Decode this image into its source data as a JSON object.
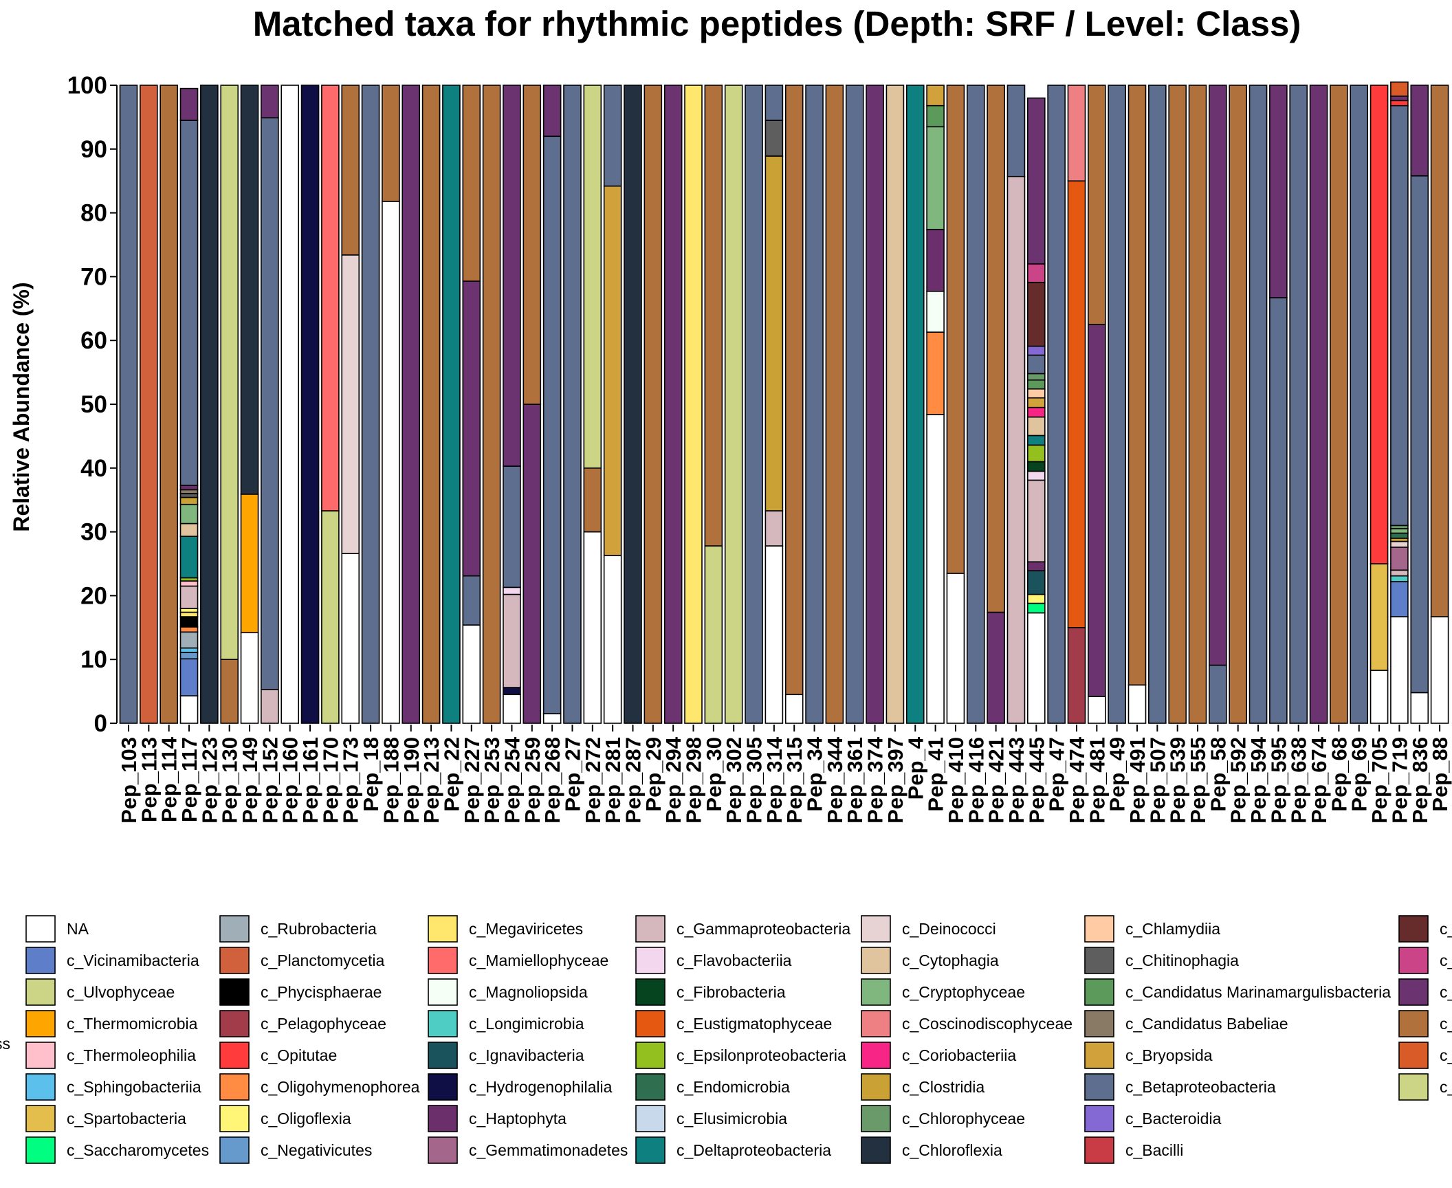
{
  "chart_data": {
    "type": "bar",
    "stacked": true,
    "title": "Matched taxa for rhythmic peptides (Depth: SRF / Level: Class)",
    "xlabel": "",
    "ylabel": "Relative Abundance (%)",
    "ylim": [
      0,
      100
    ],
    "yticks": [
      0,
      10,
      20,
      30,
      40,
      50,
      60,
      70,
      80,
      90,
      100
    ],
    "grid": false,
    "legend_title": "ss",
    "legend_position": "bottom",
    "categories": [
      "Pep_103",
      "Pep_113",
      "Pep_114",
      "Pep_117",
      "Pep_123",
      "Pep_130",
      "Pep_149",
      "Pep_152",
      "Pep_160",
      "Pep_161",
      "Pep_170",
      "Pep_173",
      "Pep_18",
      "Pep_188",
      "Pep_190",
      "Pep_213",
      "Pep_22",
      "Pep_227",
      "Pep_253",
      "Pep_254",
      "Pep_259",
      "Pep_268",
      "Pep_27",
      "Pep_272",
      "Pep_281",
      "Pep_287",
      "Pep_29",
      "Pep_294",
      "Pep_298",
      "Pep_30",
      "Pep_302",
      "Pep_305",
      "Pep_314",
      "Pep_315",
      "Pep_34",
      "Pep_344",
      "Pep_361",
      "Pep_374",
      "Pep_397",
      "Pep_4",
      "Pep_41",
      "Pep_410",
      "Pep_416",
      "Pep_421",
      "Pep_443",
      "Pep_445",
      "Pep_47",
      "Pep_474",
      "Pep_481",
      "Pep_49",
      "Pep_491",
      "Pep_507",
      "Pep_539",
      "Pep_555",
      "Pep_58",
      "Pep_592",
      "Pep_594",
      "Pep_595",
      "Pep_638",
      "Pep_674",
      "Pep_68",
      "Pep_69",
      "Pep_705",
      "Pep_719",
      "Pep_836",
      "Pep_88"
    ],
    "legend": [
      {
        "name": "NA",
        "color": "#FFFFFF"
      },
      {
        "name": "c_Vicinamibacteria",
        "color": "#5E7EC9"
      },
      {
        "name": "c_Ulvophyceae",
        "color": "#CBD585"
      },
      {
        "name": "c_Thermomicrobia",
        "color": "#FFA500"
      },
      {
        "name": "c_Thermoleophilia",
        "color": "#FFC0CB"
      },
      {
        "name": "c_Sphingobacteriia",
        "color": "#5BC0EB"
      },
      {
        "name": "c_Spartobacteria",
        "color": "#E3BE4C"
      },
      {
        "name": "c_Saccharomycetes",
        "color": "#00FF80"
      },
      {
        "name": "c_Rubrobacteria",
        "color": "#A0AEB8"
      },
      {
        "name": "c_Planctomycetia",
        "color": "#D0613C"
      },
      {
        "name": "c_Phycisphaerae",
        "color": "#000000"
      },
      {
        "name": "c_Pelagophyceae",
        "color": "#A23C4A"
      },
      {
        "name": "c_Opitutae",
        "color": "#FF3B3B"
      },
      {
        "name": "c_Oligohymenophorea",
        "color": "#FF8C42"
      },
      {
        "name": "c_Oligoflexia",
        "color": "#FFF577"
      },
      {
        "name": "c_Negativicutes",
        "color": "#6699CC"
      },
      {
        "name": "c_Megaviricetes",
        "color": "#FFE66D"
      },
      {
        "name": "c_Mamiellophyceae",
        "color": "#FF6B6B"
      },
      {
        "name": "c_Magnoliopsida",
        "color": "#F5FFF5"
      },
      {
        "name": "c_Longimicrobia",
        "color": "#4ECDC4"
      },
      {
        "name": "c_Ignavibacteria",
        "color": "#1A535C"
      },
      {
        "name": "c_Hydrogenophilalia",
        "color": "#0F0F45"
      },
      {
        "name": "c_Haptophyta",
        "color": "#6B2F6B"
      },
      {
        "name": "c_Gemmatimonadetes",
        "color": "#A5668B"
      },
      {
        "name": "c_Gammaproteobacteria",
        "color": "#D4B8BE"
      },
      {
        "name": "c_Flavobacteriia",
        "color": "#F2D7EE"
      },
      {
        "name": "c_Fibrobacteria",
        "color": "#064420"
      },
      {
        "name": "c_Eustigmatophyceae",
        "color": "#E55812"
      },
      {
        "name": "c_Epsilonproteobacteria",
        "color": "#93C01F"
      },
      {
        "name": "c_Endomicrobia",
        "color": "#2F6F4F"
      },
      {
        "name": "c_Elusimicrobia",
        "color": "#C7D9EA"
      },
      {
        "name": "c_Deltaproteobacteria",
        "color": "#0F8080"
      },
      {
        "name": "c_Deinococci",
        "color": "#E7D3D3"
      },
      {
        "name": "c_Cytophagia",
        "color": "#E0C49E"
      },
      {
        "name": "c_Cryptophyceae",
        "color": "#7FB77E"
      },
      {
        "name": "c_Coscinodiscophyceae",
        "color": "#EE7F82"
      },
      {
        "name": "c_Coriobacteriia",
        "color": "#F72585"
      },
      {
        "name": "c_Clostridia",
        "color": "#C9A135"
      },
      {
        "name": "c_Chlorophyceae",
        "color": "#6A9A6A"
      },
      {
        "name": "c_Chloroflexia",
        "color": "#233040"
      },
      {
        "name": "c_Chlamydiia",
        "color": "#FFCBA4"
      },
      {
        "name": "c_Chitinophagia",
        "color": "#5E5E5E"
      },
      {
        "name": "c_Candidatus Marinamargulisbacteria",
        "color": "#5C9A5C"
      },
      {
        "name": "c_Candidatus Babeliae",
        "color": "#887A64"
      },
      {
        "name": "c_Bryopsida",
        "color": "#D1A23C"
      },
      {
        "name": "c_Betaproteobacteria",
        "color": "#5E6E8E"
      },
      {
        "name": "c_Bacteroidia",
        "color": "#8468D4"
      },
      {
        "name": "c_Bacilli",
        "color": "#C93C46"
      },
      {
        "name": "c_",
        "color": "#662C2C"
      },
      {
        "name": "c_",
        "color": "#CC4488"
      },
      {
        "name": "c_",
        "color": "#6B3470"
      },
      {
        "name": "c_",
        "color": "#B0713C"
      },
      {
        "name": "c_",
        "color": "#D95B28"
      },
      {
        "name": "c_",
        "color": "#CBD585"
      }
    ],
    "stacks": [
      [
        [
          "#5E6E8E",
          100
        ]
      ],
      [
        [
          "#D0613C",
          100
        ]
      ],
      [
        [
          "#B0713C",
          100
        ]
      ],
      [
        [
          "#FFFFFF",
          4.3
        ],
        [
          "#5E7EC9",
          5.8
        ],
        [
          "#6699CC",
          1
        ],
        [
          "#5BC0EB",
          0.7
        ],
        [
          "#A0AEB8",
          2.5
        ],
        [
          "#FF8C42",
          0.8
        ],
        [
          "#000000",
          1.6
        ],
        [
          "#FFE66D",
          0.7
        ],
        [
          "#FFF577",
          0.6
        ],
        [
          "#D4B8BE",
          3.5
        ],
        [
          "#FFC0CB",
          0.8
        ],
        [
          "#93C01F",
          0.5
        ],
        [
          "#0F8080",
          6.5
        ],
        [
          "#E0C49E",
          2
        ],
        [
          "#7FB77E",
          3
        ],
        [
          "#C9A135",
          1.1
        ],
        [
          "#5E5E5E",
          0.6
        ],
        [
          "#887A64",
          0.6
        ],
        [
          "#6B2F6B",
          0.7
        ],
        [
          "#5E6E8E",
          57.2
        ],
        [
          "#6B3470",
          5
        ]
      ],
      [
        [
          "#233040",
          100
        ]
      ],
      [
        [
          "#B0713C",
          10
        ],
        [
          "#CBD585",
          90
        ]
      ],
      [
        [
          "#FFFFFF",
          14.2
        ],
        [
          "#FFA500",
          21.7
        ],
        [
          "#233040",
          64.1
        ]
      ],
      [
        [
          "#D4B8BE",
          5.3
        ],
        [
          "#5E6E8E",
          89.6
        ],
        [
          "#6B3470",
          5.1
        ]
      ],
      [
        [
          "#FFFFFF",
          100
        ]
      ],
      [
        [
          "#0F0F45",
          100
        ]
      ],
      [
        [
          "#CBD585",
          33.3
        ],
        [
          "#FF6B6B",
          66.7
        ]
      ],
      [
        [
          "#FFFFFF",
          26.6
        ],
        [
          "#E7D3D3",
          46.8
        ],
        [
          "#B0713C",
          26.6
        ]
      ],
      [
        [
          "#5E6E8E",
          100
        ]
      ],
      [
        [
          "#FFFFFF",
          81.8
        ],
        [
          "#B0713C",
          18.2
        ]
      ],
      [
        [
          "#6B3470",
          100
        ]
      ],
      [
        [
          "#B0713C",
          100
        ]
      ],
      [
        [
          "#0F8080",
          100
        ]
      ],
      [
        [
          "#FFFFFF",
          15.4
        ],
        [
          "#5E6E8E",
          7.7
        ],
        [
          "#6B3470",
          46.2
        ],
        [
          "#B0713C",
          30.7
        ]
      ],
      [
        [
          "#B0713C",
          100
        ]
      ],
      [
        [
          "#FFFFFF",
          4.5
        ],
        [
          "#0F0F45",
          1.1
        ],
        [
          "#D4B8BE",
          14.6
        ],
        [
          "#F2D7EE",
          1.1
        ],
        [
          "#5E6E8E",
          19
        ],
        [
          "#6B3470",
          59.7
        ]
      ],
      [
        [
          "#6B3470",
          50
        ],
        [
          "#B0713C",
          50
        ]
      ],
      [
        [
          "#FFFFFF",
          1.5
        ],
        [
          "#5E6E8E",
          90.5
        ],
        [
          "#6B3470",
          8
        ]
      ],
      [
        [
          "#5E6E8E",
          100
        ]
      ],
      [
        [
          "#FFFFFF",
          30
        ],
        [
          "#B0713C",
          10
        ],
        [
          "#CBD585",
          60
        ]
      ],
      [
        [
          "#FFFFFF",
          26.3
        ],
        [
          "#D1A23C",
          57.9
        ],
        [
          "#5E6E8E",
          15.8
        ]
      ],
      [
        [
          "#233040",
          100
        ]
      ],
      [
        [
          "#B0713C",
          100
        ]
      ],
      [
        [
          "#6B3470",
          100
        ]
      ],
      [
        [
          "#FFE66D",
          100
        ]
      ],
      [
        [
          "#CBD585",
          27.8
        ],
        [
          "#B0713C",
          72.2
        ]
      ],
      [
        [
          "#CBD585",
          100
        ]
      ],
      [
        [
          "#5E6E8E",
          100
        ]
      ],
      [
        [
          "#FFFFFF",
          27.8
        ],
        [
          "#D4B8BE",
          5.5
        ],
        [
          "#C9A135",
          55.6
        ],
        [
          "#5E5E5E",
          5.6
        ],
        [
          "#5E6E8E",
          5.5
        ]
      ],
      [
        [
          "#FFFFFF",
          4.5
        ],
        [
          "#B0713C",
          95.5
        ]
      ],
      [
        [
          "#5E6E8E",
          100
        ]
      ],
      [
        [
          "#B0713C",
          100
        ]
      ],
      [
        [
          "#5E6E8E",
          100
        ]
      ],
      [
        [
          "#6B3470",
          100
        ]
      ],
      [
        [
          "#E0C49E",
          100
        ]
      ],
      [
        [
          "#0F8080",
          100
        ]
      ],
      [
        [
          "#FFFFFF",
          48.4
        ],
        [
          "#FF8C42",
          12.9
        ],
        [
          "#F5FFF5",
          6.4
        ],
        [
          "#6B2F6B",
          9.7
        ],
        [
          "#7FB77E",
          16.1
        ],
        [
          "#5C9A5C",
          3.3
        ],
        [
          "#D1A23C",
          3.2
        ]
      ],
      [
        [
          "#FFFFFF",
          23.5
        ],
        [
          "#B0713C",
          76.5
        ]
      ],
      [
        [
          "#5E6E8E",
          100
        ]
      ],
      [
        [
          "#6B3470",
          17.4
        ],
        [
          "#B0713C",
          82.6
        ]
      ],
      [
        [
          "#D4B8BE",
          85.7
        ],
        [
          "#5E6E8E",
          14.3
        ]
      ],
      [
        [
          "#FFFFFF",
          17.3
        ],
        [
          "#00FF80",
          1.5
        ],
        [
          "#FFF577",
          1.4
        ],
        [
          "#1A535C",
          3.7
        ],
        [
          "#6B2F6B",
          1.4
        ],
        [
          "#D4B8BE",
          12.8
        ],
        [
          "#F2D7EE",
          1.4
        ],
        [
          "#064420",
          1.5
        ],
        [
          "#93C01F",
          2.6
        ],
        [
          "#0F8080",
          1.5
        ],
        [
          "#E0C49E",
          2.9
        ],
        [
          "#F72585",
          1.5
        ],
        [
          "#D1A23C",
          1.5
        ],
        [
          "#FFCBA4",
          1.4
        ],
        [
          "#5C9A5C",
          1.4
        ],
        [
          "#6A9A6A",
          1
        ],
        [
          "#5E6E8E",
          2.9
        ],
        [
          "#8468D4",
          1.4
        ],
        [
          "#662C2C",
          10
        ],
        [
          "#CC4488",
          2.9
        ],
        [
          "#6B3470",
          26
        ]
      ],
      [
        [
          "#5E6E8E",
          100
        ]
      ],
      [
        [
          "#A23C4A",
          15
        ],
        [
          "#E55812",
          70
        ],
        [
          "#EE7F82",
          15
        ]
      ],
      [
        [
          "#FFFFFF",
          4.2
        ],
        [
          "#6B3470",
          58.3
        ],
        [
          "#B0713C",
          37.5
        ]
      ],
      [
        [
          "#5E6E8E",
          100
        ]
      ],
      [
        [
          "#FFFFFF",
          6
        ],
        [
          "#B0713C",
          94
        ]
      ],
      [
        [
          "#5E6E8E",
          100
        ]
      ],
      [
        [
          "#B0713C",
          100
        ]
      ],
      [
        [
          "#B0713C",
          100
        ]
      ],
      [
        [
          "#5E6E8E",
          9.1
        ],
        [
          "#6B3470",
          90.9
        ]
      ],
      [
        [
          "#B0713C",
          100
        ]
      ],
      [
        [
          "#5E6E8E",
          100
        ]
      ],
      [
        [
          "#5E6E8E",
          66.7
        ],
        [
          "#6B3470",
          33.3
        ]
      ],
      [
        [
          "#5E6E8E",
          100
        ]
      ],
      [
        [
          "#6B3470",
          100
        ]
      ],
      [
        [
          "#B0713C",
          100
        ]
      ],
      [
        [
          "#5E6E8E",
          100
        ]
      ],
      [
        [
          "#FFFFFF",
          8.3
        ],
        [
          "#E3BE4C",
          16.7
        ],
        [
          "#FF3B3B",
          75
        ]
      ],
      [
        [
          "#FFFFFF",
          16.7
        ],
        [
          "#5E7EC9",
          5.5
        ],
        [
          "#4ECDC4",
          0.9
        ],
        [
          "#D4B8BE",
          0.9
        ],
        [
          "#A5668B",
          3.6
        ],
        [
          "#E7D3D3",
          0.9
        ],
        [
          "#C9A135",
          0.5
        ],
        [
          "#2F6F4F",
          0.8
        ],
        [
          "#7FB77E",
          0.7
        ],
        [
          "#6A9A6A",
          0.5
        ],
        [
          "#5E6E8E",
          65.8
        ],
        [
          "#FF3B3B",
          0.8
        ],
        [
          "#6B3470",
          0.7
        ],
        [
          "#D95B28",
          2.2
        ]
      ],
      [
        [
          "#FFFFFF",
          4.8
        ],
        [
          "#5E6E8E",
          81
        ],
        [
          "#6B3470",
          14.2
        ]
      ],
      [
        [
          "#FFFFFF",
          16.7
        ],
        [
          "#B0713C",
          83.3
        ]
      ]
    ]
  }
}
